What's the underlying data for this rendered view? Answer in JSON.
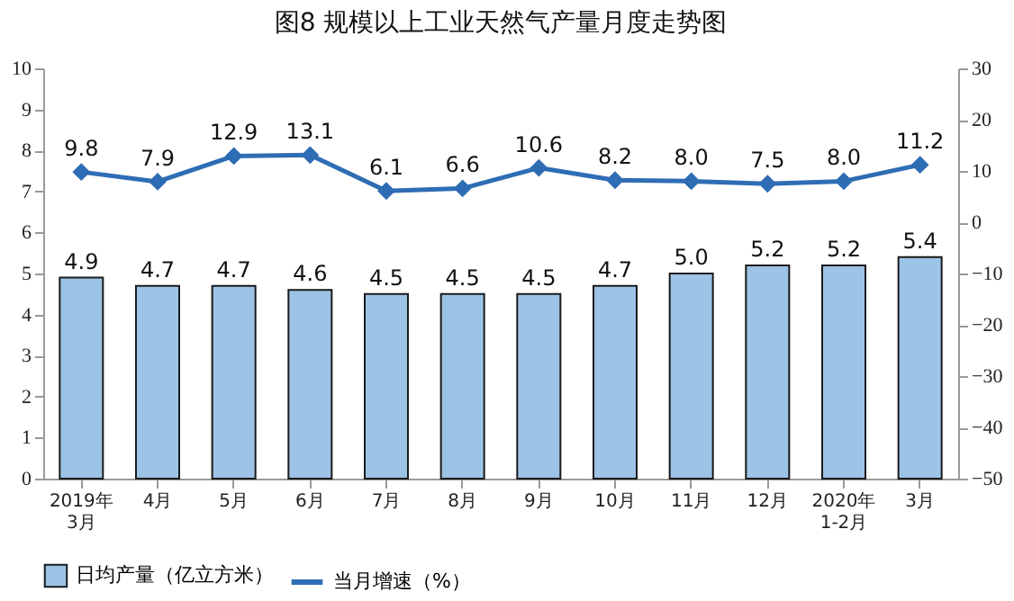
{
  "chart_data": {
    "type": "bar",
    "title": "图8  规模以上工业天然气产量月度走势图",
    "categories": [
      "2019年\n3月",
      "4月",
      "5月",
      "6月",
      "7月",
      "8月",
      "9月",
      "10月",
      "11月",
      "12月",
      "2020年\n1-2月",
      "3月"
    ],
    "series": [
      {
        "name": "日均产量（亿立方米）",
        "color": "#9dc3e6",
        "values": [
          4.9,
          4.7,
          4.7,
          4.6,
          4.5,
          4.5,
          4.5,
          4.7,
          5.0,
          5.2,
          5.2,
          5.4
        ],
        "value_labels": [
          "4.9",
          "4.7",
          "4.7",
          "4.6",
          "4.5",
          "4.5",
          "4.5",
          "4.7",
          "5.0",
          "5.2",
          "5.2",
          "5.4"
        ]
      },
      {
        "name": "当月增速（%）",
        "type": "line",
        "axis": "y2",
        "color": "#2e6db4",
        "marker": "diamond",
        "values": [
          9.8,
          7.9,
          12.9,
          13.1,
          6.1,
          6.6,
          10.6,
          8.2,
          8.0,
          7.5,
          8.0,
          11.2
        ],
        "value_labels": [
          "9.8",
          "7.9",
          "12.9",
          "13.1",
          "6.1",
          "6.6",
          "10.6",
          "8.2",
          "8.0",
          "7.5",
          "8.0",
          "11.2"
        ]
      }
    ],
    "ylim": [
      0,
      10
    ],
    "yticks": [
      0,
      1,
      2,
      3,
      4,
      5,
      6,
      7,
      8,
      9,
      10
    ],
    "y2lim": [
      -50,
      30
    ],
    "y2ticks": [
      -50,
      -40,
      -30,
      -20,
      -10,
      0,
      10,
      20,
      30
    ],
    "grid": false,
    "legend": "bottom"
  }
}
